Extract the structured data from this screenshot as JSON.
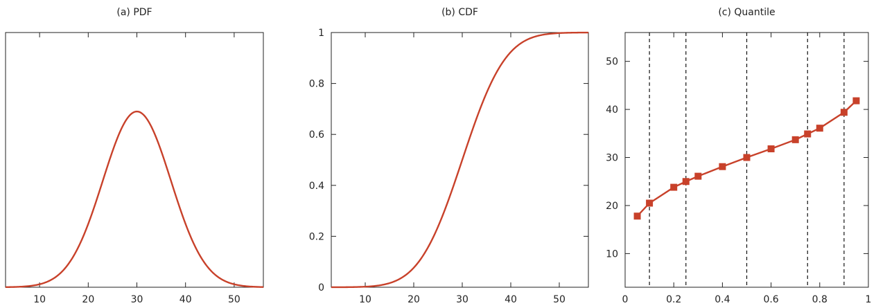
{
  "chart_data": [
    {
      "type": "line",
      "title": "(a) PDF",
      "xlabel": "",
      "ylabel": "",
      "xlim": [
        3,
        56
      ],
      "xticks": [
        10,
        20,
        30,
        40,
        50
      ],
      "yticks": [],
      "curve": {
        "kind": "normal-pdf",
        "mean": 30,
        "sd": 7
      },
      "color": "#c8412a",
      "grid": false
    },
    {
      "type": "line",
      "title": "(b) CDF",
      "xlabel": "",
      "ylabel": "",
      "xlim": [
        3,
        56
      ],
      "ylim": [
        0,
        1
      ],
      "xticks": [
        10,
        20,
        30,
        40,
        50
      ],
      "yticks": [
        0,
        0.2,
        0.4,
        0.6,
        0.8,
        1
      ],
      "curve": {
        "kind": "normal-cdf",
        "mean": 30,
        "sd": 7
      },
      "color": "#c8412a",
      "grid": false
    },
    {
      "type": "line",
      "title": "(c) Quantile",
      "xlabel": "",
      "ylabel": "",
      "xlim": [
        0,
        1
      ],
      "ylim": [
        3,
        56
      ],
      "xticks": [
        0,
        0.2,
        0.4,
        0.6,
        0.8,
        1
      ],
      "yticks": [
        10,
        20,
        30,
        40,
        50
      ],
      "x": [
        0.05,
        0.1,
        0.2,
        0.25,
        0.3,
        0.4,
        0.5,
        0.6,
        0.7,
        0.75,
        0.8,
        0.9,
        0.95
      ],
      "y": [
        17.8,
        20.5,
        23.8,
        25.0,
        26.1,
        28.1,
        30.0,
        31.8,
        33.7,
        34.9,
        36.1,
        39.4,
        41.8
      ],
      "vlines": [
        0.1,
        0.25,
        0.5,
        0.75,
        0.9
      ],
      "marker": "square",
      "color": "#c8412a",
      "grid": false
    }
  ]
}
